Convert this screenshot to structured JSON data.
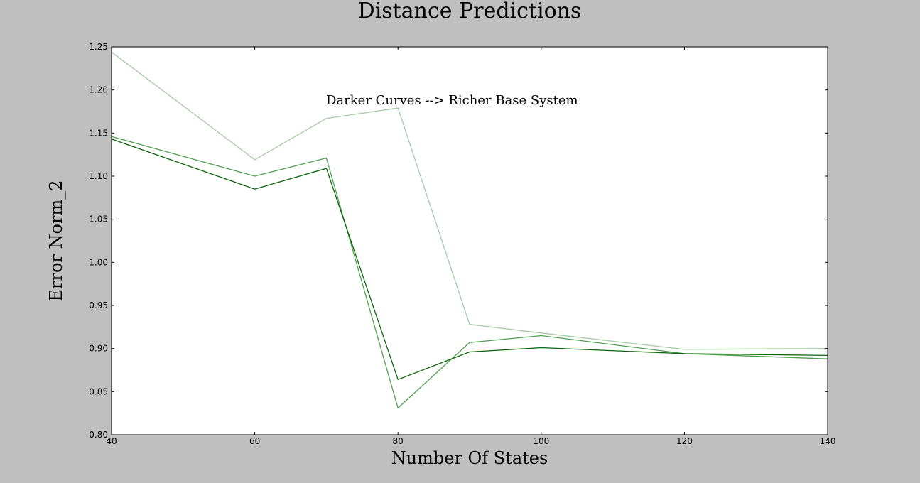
{
  "chart_data": {
    "type": "line",
    "title": "Distance Predictions",
    "xlabel": "Number Of States",
    "ylabel": "Error Norm_2",
    "annotation": "Darker Curves --> Richer Base System",
    "xlim": [
      40,
      140
    ],
    "ylim": [
      0.8,
      1.25
    ],
    "x_ticks": [
      40,
      60,
      80,
      100,
      120,
      140
    ],
    "y_ticks": [
      0.8,
      0.85,
      0.9,
      0.95,
      1.0,
      1.05,
      1.1,
      1.15,
      1.2,
      1.25
    ],
    "x_tick_labels": [
      "40",
      "60",
      "80",
      "100",
      "120",
      "140"
    ],
    "y_tick_labels": [
      "0.80",
      "0.85",
      "0.90",
      "0.95",
      "1.00",
      "1.05",
      "1.10",
      "1.15",
      "1.20",
      "1.25"
    ],
    "grid": false,
    "legend": false,
    "x": [
      40,
      60,
      70,
      80,
      90,
      100,
      120,
      140
    ],
    "series": [
      {
        "color": "#a3cca3",
        "values": [
          1.244,
          1.119,
          1.167,
          1.179,
          0.928,
          0.918,
          0.899,
          0.9
        ]
      },
      {
        "color": "#4f9f4f",
        "values": [
          1.146,
          1.1,
          1.121,
          0.831,
          0.907,
          0.915,
          0.894,
          0.888
        ]
      },
      {
        "color": "#0a640a",
        "values": [
          1.143,
          1.085,
          1.109,
          0.864,
          0.896,
          0.901,
          0.894,
          0.892
        ]
      }
    ]
  }
}
